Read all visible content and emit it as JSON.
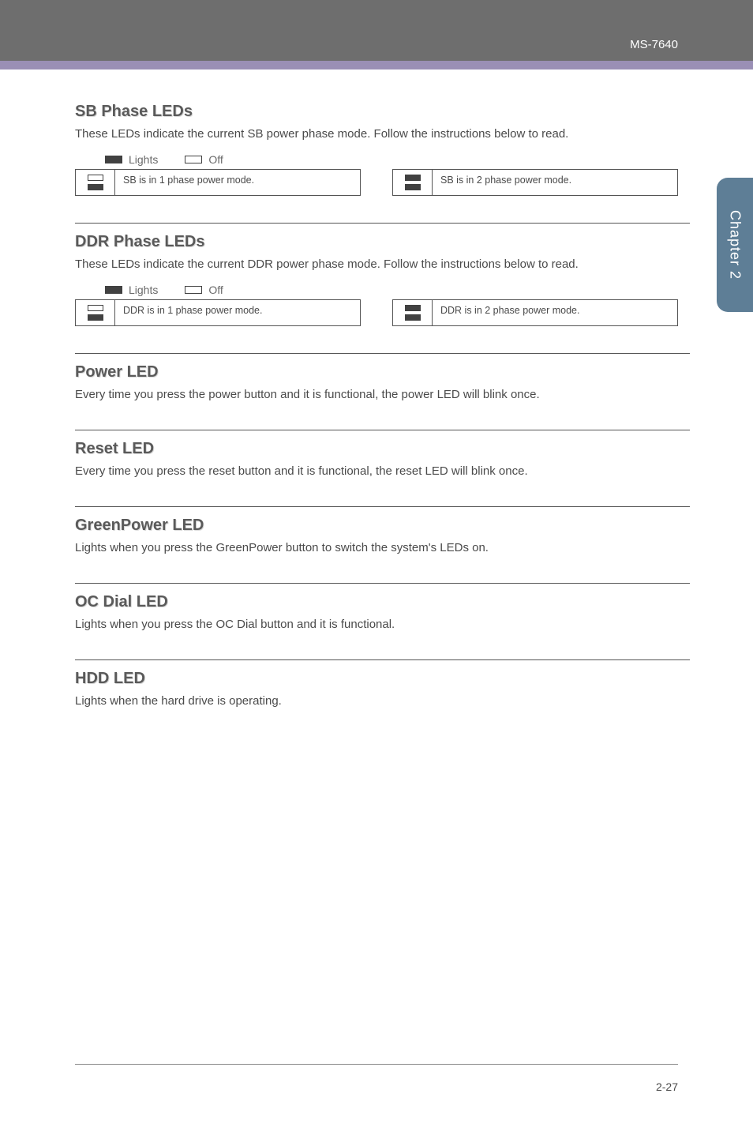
{
  "doc_id": "MS-7640",
  "side_tab": "Chapter 2",
  "footer": "2-27",
  "sections": {
    "sb": {
      "title": "SB Phase LEDs",
      "body": "These LEDs indicate the current SB power phase mode. Follow the instructions below to read.",
      "legend_lights": "Lights",
      "legend_off": "Off",
      "mode1_text": "SB is in 1 phase power mode.",
      "mode2_text": "SB is in 2 phase power mode."
    },
    "ddr": {
      "title": "DDR Phase LEDs",
      "body": "These LEDs indicate the current DDR power phase mode. Follow the instructions below to read.",
      "legend_lights": "Lights",
      "legend_off": "Off",
      "mode1_text": "DDR is in 1 phase power mode.",
      "mode2_text": "DDR is in 2 phase power mode."
    },
    "power": {
      "title": "Power LED",
      "body": "Every time you press the power button and it is functional, the power LED will blink once."
    },
    "reset": {
      "title": "Reset LED",
      "body": "Every time you press the reset button and it is functional, the reset LED will blink once."
    },
    "green": {
      "title": "GreenPower LED",
      "body": "Lights when you press the GreenPower button to switch the system's LEDs on."
    },
    "oc": {
      "title": "OC Dial LED",
      "body": "Lights when you press the OC Dial button and it is functional."
    },
    "hdd": {
      "title": "HDD LED",
      "body": "Lights when the hard drive is operating."
    }
  },
  "colors": {
    "top_band": "#6e6e6e",
    "purple_strip": "#9a8fb5",
    "side_tab": "#5e7e96",
    "text": "#4a4a4a",
    "heading": "#5a5a5a",
    "swatch": "#414141"
  }
}
